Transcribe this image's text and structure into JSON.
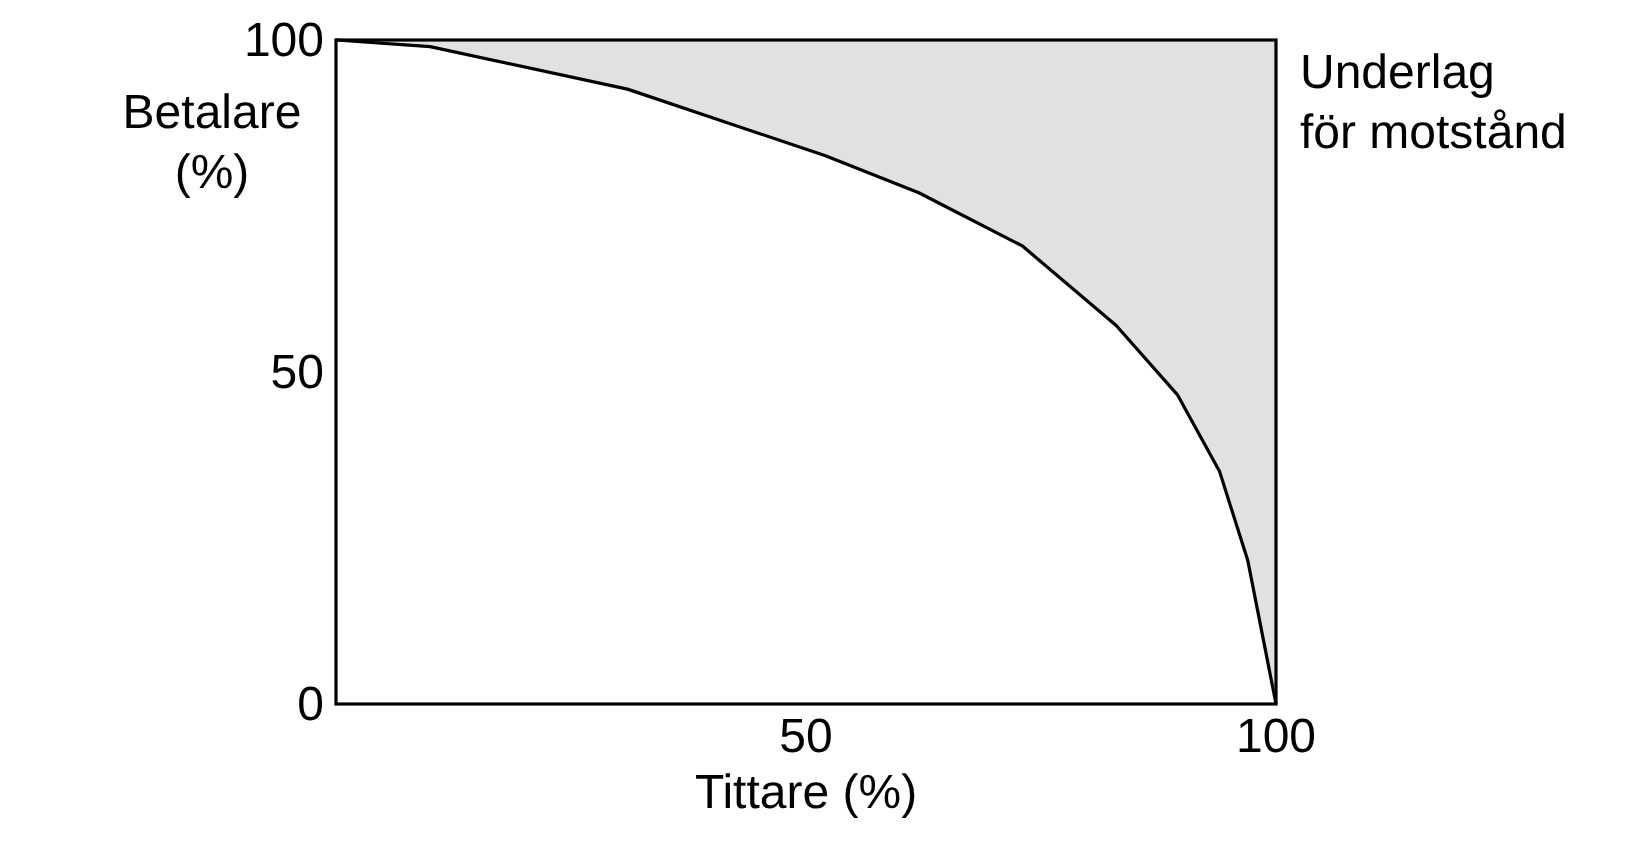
{
  "chart_data": {
    "type": "line",
    "xlabel": "Tittare (%)",
    "ylabel": "Betalare (%)",
    "xlim": [
      0,
      100
    ],
    "ylim": [
      0,
      100
    ],
    "xticks": [
      50,
      100
    ],
    "yticks": [
      0,
      50,
      100
    ],
    "grid": false,
    "marker": "none",
    "line_style": "solid",
    "series": [
      {
        "name": "Underlag för motstånd",
        "color": "#000000",
        "x": [
          0,
          10,
          31,
          52,
          62,
          73,
          83,
          89.5,
          94,
          97,
          100
        ],
        "values": [
          100,
          99,
          92.6,
          82.6,
          77,
          69,
          57,
          46.6,
          35,
          21.6,
          0
        ],
        "lower": [
          100,
          99,
          92.6,
          82.6,
          77,
          69,
          57,
          46.6,
          35,
          21.6,
          0
        ],
        "upper": [
          100,
          100,
          100,
          100,
          100,
          100,
          100,
          100,
          100,
          100,
          100
        ]
      }
    ]
  }
}
